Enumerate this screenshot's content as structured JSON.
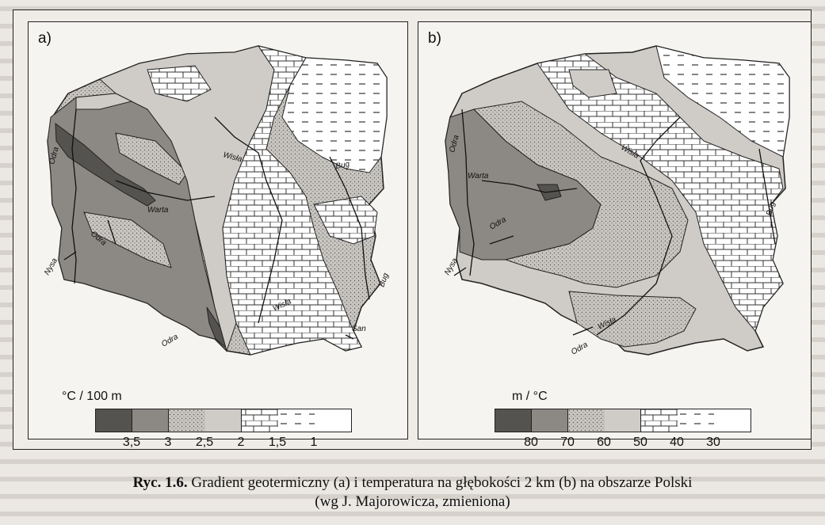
{
  "panel_a": {
    "label": "a)",
    "legend_title": "°C / 100 m",
    "legend_ticks": [
      "3,5",
      "3",
      "2,5",
      "2",
      "1,5",
      "1"
    ],
    "rivers": [
      "Odra",
      "Warta",
      "Wisła",
      "Bug",
      "Nysa",
      "Odra",
      "Odra",
      "Wisła",
      "Bug",
      "San"
    ]
  },
  "panel_b": {
    "label": "b)",
    "legend_title": "m / °C",
    "legend_ticks": [
      "80",
      "70",
      "60",
      "50",
      "40",
      "30"
    ],
    "rivers": [
      "Odra",
      "Warta",
      "Wisła",
      "Bug",
      "Odra",
      "Nysa",
      "Wisła",
      "Odra"
    ]
  },
  "legend_fills": [
    "dark",
    "medium-dark",
    "stippled",
    "light-gray",
    "brick",
    "dashes",
    "white"
  ],
  "caption": {
    "bold": "Ryc. 1.6.",
    "line1": "Gradient geotermiczny (a) i temperatura na głębokości 2 km (b) na obszarze Polski",
    "line2": "(wg J. Majorowicza, zmieniona)"
  }
}
